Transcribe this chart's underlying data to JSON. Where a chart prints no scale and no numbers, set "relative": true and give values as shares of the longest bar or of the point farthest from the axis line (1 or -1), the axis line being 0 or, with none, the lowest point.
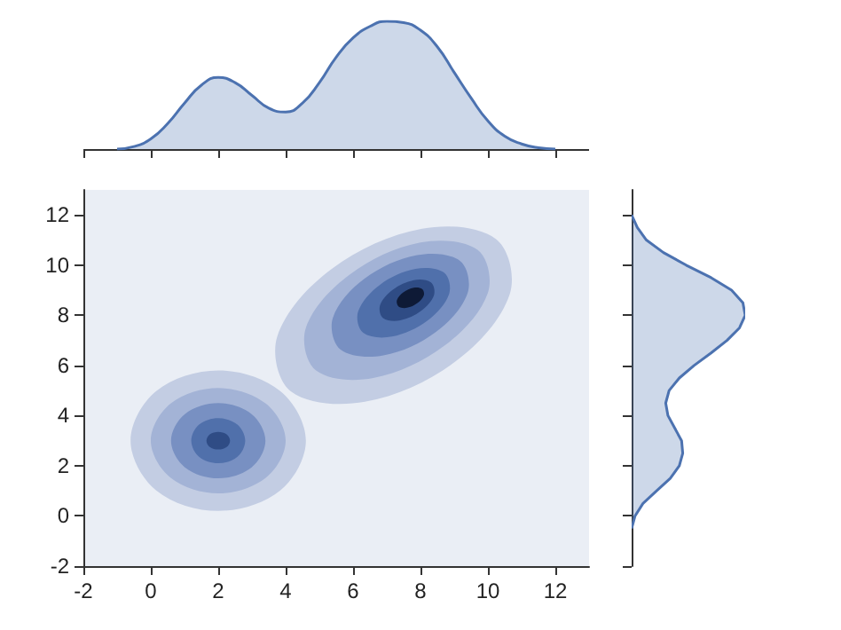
{
  "chart_data": [
    {
      "type": "area",
      "relative": true,
      "color": "#4c72b0",
      "xlim": [
        -2,
        13
      ],
      "xticks": [
        -2,
        0,
        2,
        4,
        6,
        8,
        10,
        12
      ],
      "tick_labels": false,
      "x": [
        -1,
        -0.5,
        0,
        0.5,
        1,
        1.5,
        2,
        2.5,
        3,
        3.5,
        4,
        4.5,
        5,
        5.5,
        6,
        6.5,
        7,
        7.5,
        8,
        8.5,
        9,
        9.5,
        10,
        10.5,
        11,
        11.5,
        12
      ],
      "values": [
        0,
        0.02,
        0.08,
        0.2,
        0.36,
        0.5,
        0.56,
        0.52,
        0.42,
        0.32,
        0.29,
        0.36,
        0.52,
        0.72,
        0.87,
        0.96,
        1,
        0.99,
        0.93,
        0.8,
        0.6,
        0.4,
        0.22,
        0.1,
        0.04,
        0.01,
        0
      ]
    },
    {
      "type": "area",
      "xlim": [
        -2,
        13
      ],
      "ylim": [
        -2,
        13
      ],
      "xticks": [
        -2,
        0,
        2,
        4,
        6,
        8,
        10,
        12
      ],
      "yticks": [
        -2,
        0,
        2,
        4,
        6,
        8,
        10,
        12
      ],
      "series": [
        {
          "color": "#c3cde3",
          "x": [
            4.6,
            3.84,
            2,
            0.16,
            -0.6,
            0.16,
            2,
            3.84,
            4.6
          ],
          "values": [
            3,
            4.98,
            5.8,
            4.98,
            3,
            1.02,
            0.2,
            1.02,
            3
          ]
        },
        {
          "color": "#c3cde3",
          "x": [
            10.24,
            8.05,
            5.36,
            3.75,
            4.16,
            6.35,
            9.04,
            10.65,
            10.24
          ],
          "values": [
            11.04,
            11.45,
            9.84,
            7.15,
            4.96,
            4.55,
            6.16,
            8.85,
            11.04
          ]
        },
        {
          "color": "#a3b3d6",
          "x": [
            4,
            3.41,
            2,
            0.59,
            0,
            0.59,
            2,
            3.41,
            4
          ],
          "values": [
            3,
            4.48,
            5.1,
            4.48,
            3,
            1.52,
            0.9,
            1.52,
            3
          ]
        },
        {
          "color": "#a3b3d6",
          "x": [
            9.7,
            8,
            5.89,
            4.6,
            4.9,
            6.6,
            8.71,
            10,
            9.7
          ],
          "values": [
            10.6,
            10.9,
            9.61,
            7.5,
            5.8,
            5.5,
            6.79,
            8.9,
            10.6
          ]
        },
        {
          "color": "#7890c2",
          "x": [
            3.4,
            2.99,
            2,
            1.01,
            0.6,
            1.01,
            2,
            2.99,
            3.4
          ],
          "values": [
            3,
            4.06,
            4.5,
            4.06,
            3,
            1.94,
            1.5,
            1.94,
            3
          ]
        },
        {
          "color": "#7890c2",
          "x": [
            9.17,
            7.9,
            6.34,
            5.4,
            5.63,
            6.9,
            8.46,
            9.4,
            9.17
          ],
          "values": [
            10.17,
            10.4,
            9.46,
            7.9,
            6.63,
            6.4,
            7.34,
            8.9,
            10.17
          ]
        },
        {
          "color": "#5070ab",
          "x": [
            2.8,
            2.57,
            2,
            1.43,
            1.2,
            1.43,
            2,
            2.57,
            2.8
          ],
          "values": [
            3,
            3.64,
            3.9,
            3.64,
            3,
            2.36,
            2.1,
            2.36,
            3
          ]
        },
        {
          "color": "#5070ab",
          "x": [
            8.7,
            7.85,
            6.79,
            6.15,
            6.3,
            7.15,
            8.21,
            8.85,
            8.7
          ],
          "values": [
            9.7,
            9.85,
            9.21,
            8.15,
            7.3,
            7.15,
            7.79,
            8.85,
            9.7
          ]
        },
        {
          "color": "#2f4c85",
          "x": [
            2.35,
            2.25,
            2,
            1.75,
            1.65,
            1.75,
            2,
            2.25,
            2.35
          ],
          "values": [
            3,
            3.25,
            3.35,
            3.25,
            3,
            2.75,
            2.65,
            2.75,
            3
          ]
        },
        {
          "color": "#2f4c85",
          "x": [
            8.31,
            7.8,
            7.18,
            6.8,
            6.89,
            7.4,
            8.02,
            8.4,
            8.31
          ],
          "values": [
            9.31,
            9.4,
            9.02,
            8.4,
            7.89,
            7.8,
            8.18,
            8.8,
            9.31
          ]
        },
        {
          "color": "#0e1a36",
          "x": [
            8.05,
            7.8,
            7.49,
            7.3,
            7.35,
            7.6,
            7.91,
            8.1,
            8.05
          ],
          "values": [
            9.05,
            9.1,
            8.91,
            8.6,
            8.35,
            8.3,
            8.49,
            8.8,
            9.05
          ]
        }
      ]
    },
    {
      "type": "area",
      "relative": true,
      "orientation": "horizontal",
      "color": "#4c72b0",
      "ylim": [
        -2,
        13
      ],
      "yticks": [
        -2,
        0,
        2,
        4,
        6,
        8,
        10,
        12
      ],
      "tick_labels": false,
      "x": [
        -0.5,
        0,
        0.5,
        1,
        1.5,
        2,
        2.5,
        3,
        3.5,
        4,
        4.5,
        5,
        5.5,
        6,
        6.5,
        7,
        7.5,
        8,
        8.5,
        9,
        9.5,
        10,
        10.5,
        11,
        11.5,
        12
      ],
      "values": [
        0,
        0.03,
        0.1,
        0.22,
        0.34,
        0.42,
        0.45,
        0.44,
        0.38,
        0.32,
        0.3,
        0.33,
        0.42,
        0.55,
        0.7,
        0.84,
        0.95,
        1,
        0.98,
        0.88,
        0.7,
        0.48,
        0.28,
        0.13,
        0.05,
        0
      ]
    }
  ]
}
